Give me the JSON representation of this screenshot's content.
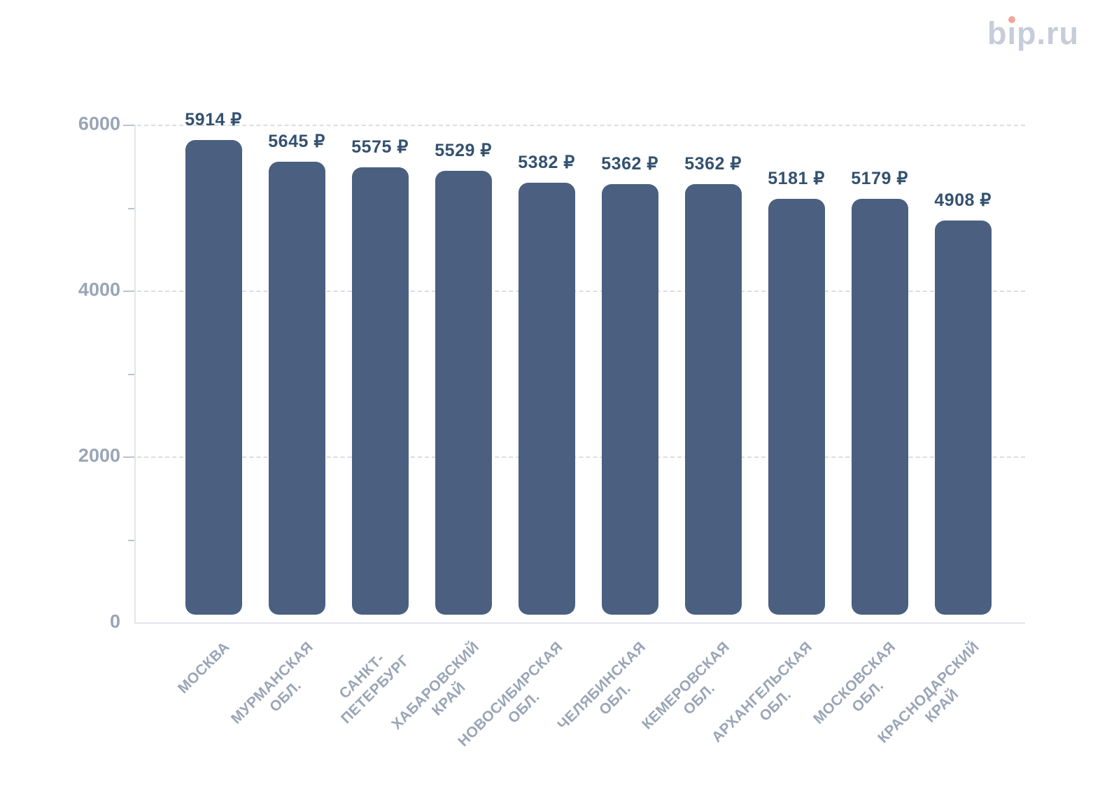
{
  "logo": {
    "prefix": "b",
    "i_char": "ı",
    "suffix": "p.ru",
    "full_text": "bip.ru",
    "color": "#c6cdd9",
    "dot_color": "#f3a59b"
  },
  "chart_data": {
    "type": "bar",
    "title": "",
    "xlabel": "",
    "ylabel": "",
    "categories": [
      "МОСКВА",
      "МУРМАНСКАЯ\nОБЛ.",
      "САНКТ-\nПЕТЕРБУРГ",
      "ХАБАРОВСКИЙ\nКРАЙ",
      "НОВОСИБИРСКАЯ\nОБЛ.",
      "ЧЕЛЯБИНСКАЯ\nОБЛ.",
      "КЕМЕРОВСКАЯ\nОБЛ.",
      "АРХАНГЕЛЬСКАЯ\nОБЛ.",
      "МОСКОВСКАЯ\nОБЛ.",
      "КРАСНОДАРСКИЙ\nКРАЙ"
    ],
    "values": [
      5914,
      5645,
      5575,
      5529,
      5382,
      5362,
      5362,
      5181,
      5179,
      4908
    ],
    "value_labels": [
      "5914 ₽",
      "5645 ₽",
      "5575 ₽",
      "5529 ₽",
      "5382 ₽",
      "5362 ₽",
      "5362 ₽",
      "5181 ₽",
      "5179 ₽",
      "4908 ₽"
    ],
    "ylim": [
      0,
      6000
    ],
    "yticks_major": [
      0,
      2000,
      4000,
      6000
    ],
    "yticks_minor": [
      1000,
      3000,
      5000
    ],
    "grid": "horizontal dashed lines at major ticks above zero",
    "legend_position": "none",
    "colors": {
      "bar": "#4b6080",
      "value_label": "#33516f",
      "tick_label": "#9aa5b6",
      "gridline": "#d9dde3",
      "axis_line": "#e2e5ea",
      "tick_mark": "#bcc3cf"
    }
  }
}
